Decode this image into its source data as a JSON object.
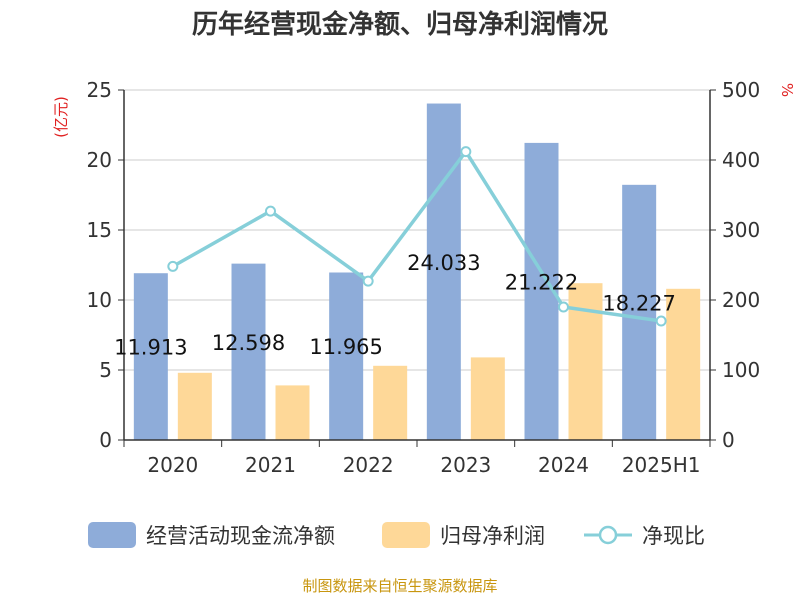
{
  "chart_data": {
    "type": "bar",
    "title": "历年经营现金净额、归母净利润情况",
    "categories": [
      "2020",
      "2021",
      "2022",
      "2023",
      "2024",
      "2025H1"
    ],
    "left_axis": {
      "unit": "(亿元)",
      "ylim": [
        0,
        25
      ],
      "ticks": [
        0,
        5,
        10,
        15,
        20,
        25
      ]
    },
    "right_axis": {
      "unit": "%",
      "ylim": [
        0,
        500
      ],
      "ticks": [
        0,
        100,
        200,
        300,
        400,
        500
      ]
    },
    "series": [
      {
        "name": "经营活动现金流净额",
        "type": "bar",
        "axis": "left",
        "color": "#8eacd9",
        "values": [
          11.913,
          12.598,
          11.965,
          24.033,
          21.222,
          18.227
        ],
        "labels": [
          "11.913",
          "12.598",
          "11.965",
          "24.033",
          "21.222",
          "18.227"
        ]
      },
      {
        "name": "归母净利润",
        "type": "bar",
        "axis": "left",
        "color": "#fed898",
        "values": [
          4.8,
          3.9,
          5.3,
          5.9,
          11.2,
          10.8
        ]
      },
      {
        "name": "净现比",
        "type": "line",
        "axis": "right",
        "color": "#86cfd9",
        "values": [
          248,
          327,
          227,
          412,
          190,
          170
        ]
      }
    ],
    "grid": true,
    "legend_position": "bottom"
  },
  "source_note": "制图数据来自恒生聚源数据库"
}
